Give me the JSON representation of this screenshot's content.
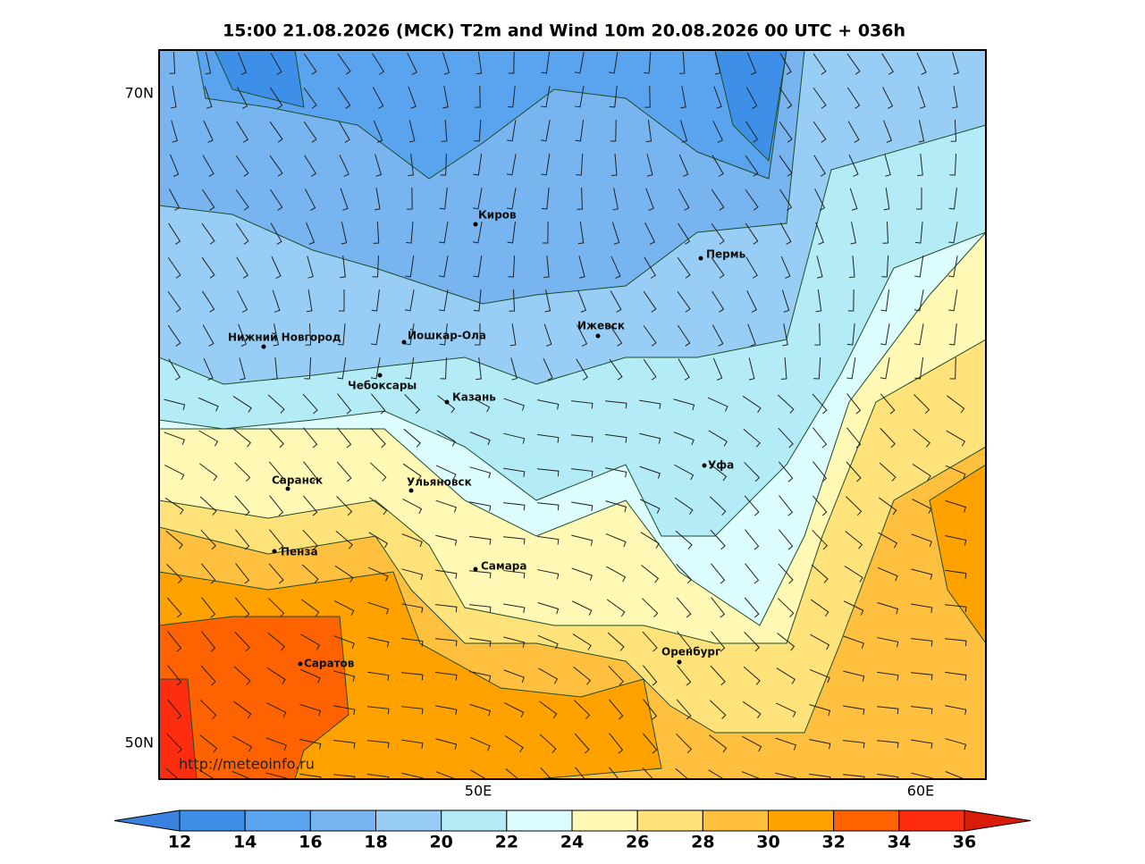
{
  "title": "15:00 21.08.2026 (МСК) T2m and Wind 10m 20.08.2026 00 UTC + 036h",
  "axes": {
    "lat_labels": [
      "70N",
      "50N"
    ],
    "lon_labels": [
      "50E",
      "60E"
    ]
  },
  "cities": [
    "Киров",
    "Пермь",
    "Нижний Новгород",
    "Йошкар-Ола",
    "Ижевск",
    "Чебоксары",
    "Казань",
    "Уфа",
    "Саранск",
    "Ульяновск",
    "Пенза",
    "Самара",
    "Саратов",
    "Оренбург"
  ],
  "watermark": "http://meteoinfo.ru",
  "colorbar": {
    "ticks": [
      12,
      14,
      16,
      18,
      20,
      22,
      24,
      26,
      28,
      30,
      32,
      34,
      36
    ],
    "colors": [
      "#3b82e0",
      "#3d8fe8",
      "#5aa3ee",
      "#77b4f0",
      "#98cdf5",
      "#b3ecf7",
      "#dcfcfd",
      "#fff9b5",
      "#ffe27a",
      "#ffc040",
      "#ffa200",
      "#ff6200",
      "#ff2d10",
      "#d81c0a"
    ]
  }
}
